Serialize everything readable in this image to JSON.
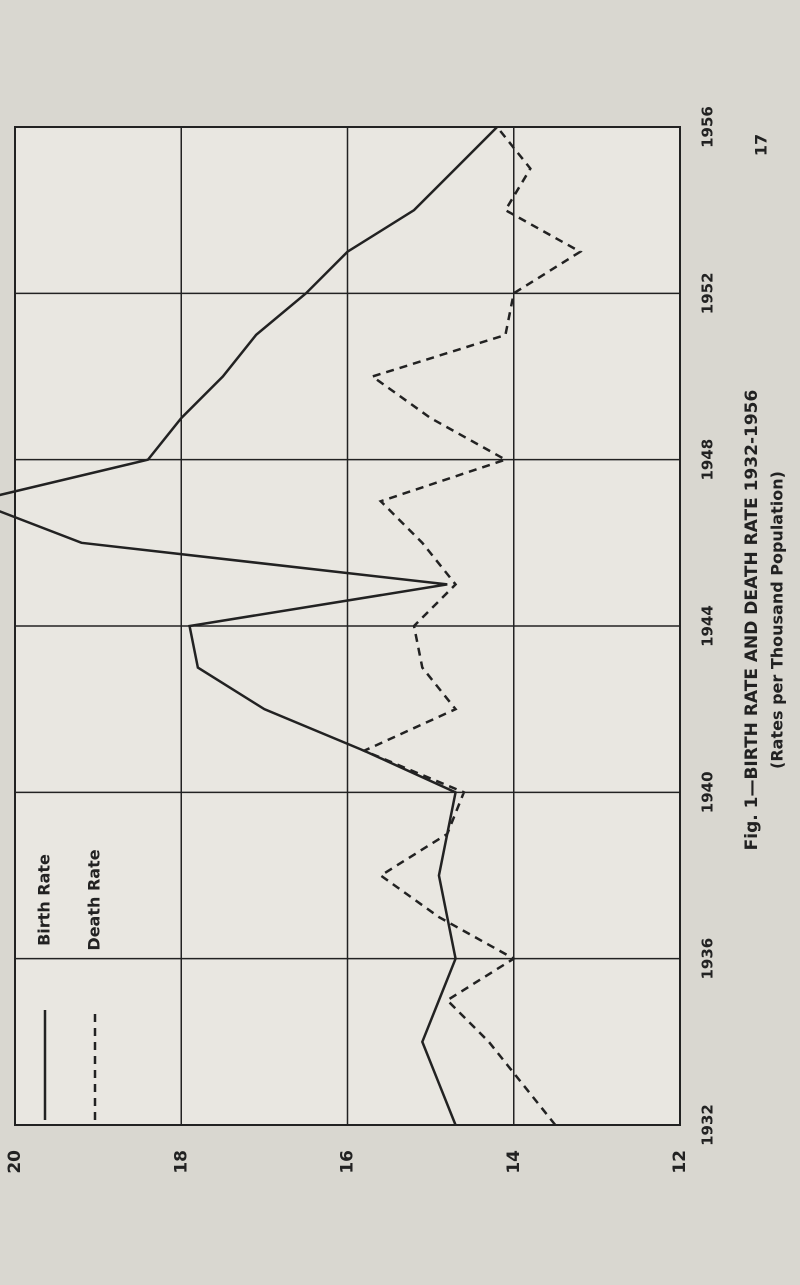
{
  "chart_data": {
    "type": "line",
    "title": "Fig. 1—BIRTH RATE AND DEATH RATE 1932-1956",
    "subtitle": "(Rates per Thousand Population)",
    "page_number": "17",
    "x": [
      1932,
      1933,
      1934,
      1935,
      1936,
      1937,
      1938,
      1939,
      1940,
      1941,
      1942,
      1943,
      1944,
      1945,
      1946,
      1947,
      1948,
      1949,
      1950,
      1951,
      1952,
      1953,
      1954,
      1955,
      1956
    ],
    "series": [
      {
        "name": "Birth Rate",
        "color": "#222222",
        "dash": false,
        "values": [
          14.7,
          14.9,
          15.1,
          14.9,
          14.7,
          14.8,
          14.9,
          14.8,
          14.7,
          15.8,
          17.0,
          17.8,
          17.9,
          14.8,
          19.2,
          20.5,
          18.4,
          18.0,
          17.5,
          17.1,
          16.5,
          16.0,
          15.2,
          14.7,
          14.2
        ]
      },
      {
        "name": "Death Rate",
        "color": "#222222",
        "dash": true,
        "values": [
          13.5,
          13.9,
          14.3,
          14.8,
          14.0,
          14.9,
          15.6,
          14.8,
          14.6,
          15.8,
          14.7,
          15.1,
          15.2,
          14.7,
          15.1,
          15.6,
          14.1,
          15.0,
          15.7,
          14.1,
          14.0,
          13.2,
          14.1,
          13.8,
          14.2
        ]
      }
    ],
    "xlim": [
      1932,
      1956
    ],
    "xticks": [
      1932,
      1936,
      1940,
      1944,
      1948,
      1952,
      1956
    ],
    "ylim": [
      12,
      20
    ],
    "yticks": [
      12,
      14,
      16,
      18,
      20
    ],
    "grid": true
  }
}
